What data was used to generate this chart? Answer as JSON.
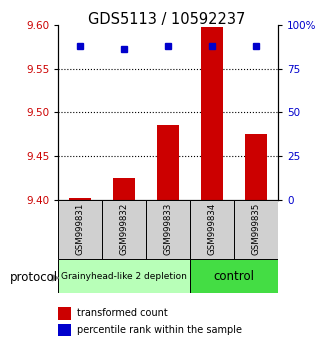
{
  "title": "GDS5113 / 10592237",
  "samples": [
    "GSM999831",
    "GSM999832",
    "GSM999833",
    "GSM999834",
    "GSM999835"
  ],
  "red_values": [
    9.402,
    9.425,
    9.486,
    9.597,
    9.475
  ],
  "blue_values": [
    88,
    86,
    88,
    88,
    88
  ],
  "ylim_left": [
    9.4,
    9.6
  ],
  "ylim_right": [
    0,
    100
  ],
  "yticks_left": [
    9.4,
    9.45,
    9.5,
    9.55,
    9.6
  ],
  "yticks_right": [
    0,
    25,
    50,
    75,
    100
  ],
  "ytick_right_labels": [
    "0",
    "25",
    "50",
    "75",
    "100%"
  ],
  "groups": [
    {
      "label": "Grainyhead-like 2 depletion",
      "n_samples": 3,
      "color": "#b8ffb8"
    },
    {
      "label": "control",
      "n_samples": 2,
      "color": "#44dd44"
    }
  ],
  "red_color": "#cc0000",
  "blue_color": "#0000cc",
  "bar_width": 0.5,
  "dotted_lines": [
    9.45,
    9.5,
    9.55
  ],
  "protocol_label": "protocol",
  "legend": [
    {
      "color": "#cc0000",
      "label": "transformed count"
    },
    {
      "color": "#0000cc",
      "label": "percentile rank within the sample"
    }
  ]
}
